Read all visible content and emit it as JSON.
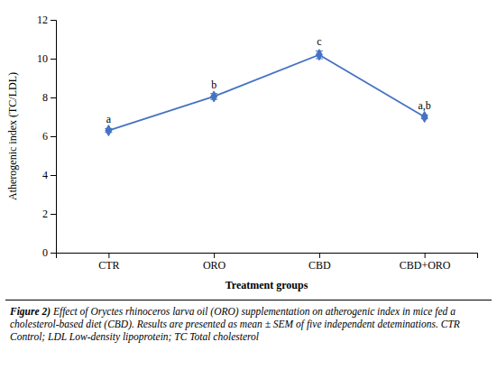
{
  "chart_data": {
    "type": "line",
    "categories": [
      "CTR",
      "ORO",
      "CBD",
      "CBD+ORO"
    ],
    "values": [
      6.3,
      8.05,
      10.2,
      7.0
    ],
    "errors": [
      0.1,
      0.15,
      0.2,
      0.1
    ],
    "labels": [
      "a",
      "b",
      "c",
      "a,b"
    ],
    "color": "#4472C4",
    "marker": "diamond",
    "ylabel": "Atherogenic index (TC/LDL)",
    "xlabel": "Treatment groups",
    "ylim": [
      0,
      12
    ],
    "yticks": [
      0,
      2,
      4,
      6,
      8,
      10,
      12
    ],
    "grid": false,
    "caption": [
      "Figure 2)",
      " Effect of Oryctes rhinoceros larva oil (ORO) supplementation on atherogenic index in mice fed a cholesterol-based diet (CBD). Results are presented as mean ± SEM of five independent deteminations. CTR Control; LDL Low-density lipoprotein; TC Total cholesterol"
    ]
  }
}
